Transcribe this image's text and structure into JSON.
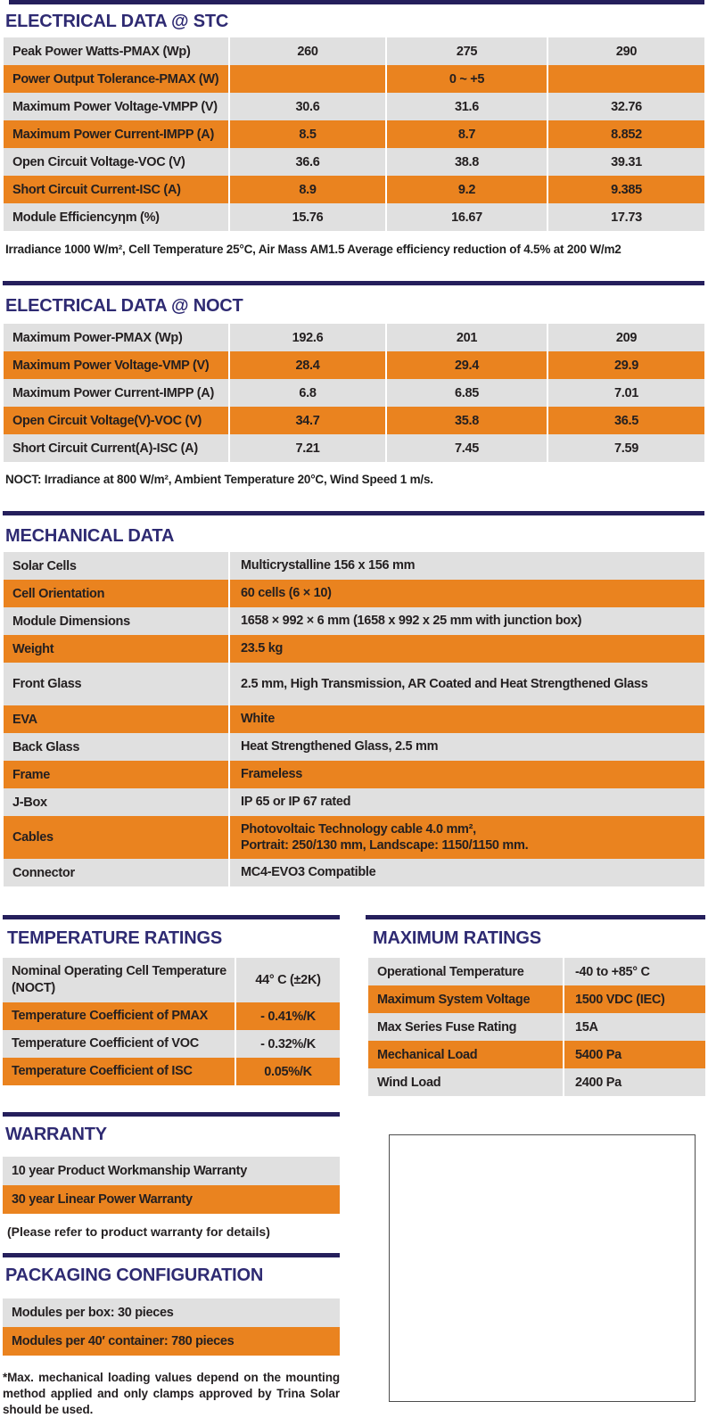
{
  "colors": {
    "navy_bar": "#251F5C",
    "heading_navy": "#2E2A72",
    "row_orange": "#EA831F",
    "row_gray": "#E0E0E0"
  },
  "stc": {
    "title": "ELECTRICAL DATA @ STC",
    "rows": [
      {
        "label": "Peak Power Watts-PMAX (Wp)",
        "values": [
          "260",
          "275",
          "290"
        ]
      },
      {
        "label": "Power Output Tolerance-PMAX (W)",
        "values": [
          "",
          "0 ~ +5",
          ""
        ]
      },
      {
        "label": "Maximum Power Voltage-VMPP (V)",
        "values": [
          "30.6",
          "31.6",
          "32.76"
        ]
      },
      {
        "label": "Maximum Power Current-IMPP (A)",
        "values": [
          "8.5",
          "8.7",
          "8.852"
        ]
      },
      {
        "label": "Open Circuit Voltage-VOC (V)",
        "values": [
          "36.6",
          "38.8",
          "39.31"
        ]
      },
      {
        "label": "Short Circuit Current-ISC (A)",
        "values": [
          "8.9",
          "9.2",
          "9.385"
        ]
      },
      {
        "label": "Module Efficiencyηm (%)",
        "values": [
          "15.76",
          "16.67",
          "17.73"
        ]
      }
    ],
    "footnote": "Irradiance 1000 W/m², Cell Temperature 25°C, Air Mass AM1.5 Average efficiency reduction of 4.5% at 200 W/m2"
  },
  "noct": {
    "title": "ELECTRICAL DATA @ NOCT",
    "rows": [
      {
        "label": "Maximum Power-PMAX (Wp)",
        "values": [
          "192.6",
          "201",
          "209"
        ]
      },
      {
        "label": "Maximum Power Voltage-VMP (V)",
        "values": [
          "28.4",
          "29.4",
          "29.9"
        ]
      },
      {
        "label": "Maximum Power Current-IMPP (A)",
        "values": [
          "6.8",
          "6.85",
          "7.01"
        ]
      },
      {
        "label": "Open Circuit Voltage(V)-VOC (V)",
        "values": [
          "34.7",
          "35.8",
          "36.5"
        ]
      },
      {
        "label": "Short Circuit Current(A)-ISC (A)",
        "values": [
          "7.21",
          "7.45",
          "7.59"
        ]
      }
    ],
    "footnote": "NOCT: Irradiance at 800 W/m², Ambient Temperature 20°C, Wind Speed 1 m/s."
  },
  "mechanical": {
    "title": "MECHANICAL DATA",
    "rows": [
      {
        "label": "Solar Cells",
        "value": "Multicrystalline 156 x 156 mm"
      },
      {
        "label": "Cell Orientation",
        "value": "60 cells (6 × 10)"
      },
      {
        "label": "Module Dimensions",
        "value": "1658 × 992 × 6 mm (1658 x 992 x 25 mm with junction box)"
      },
      {
        "label": "Weight",
        "value": "23.5 kg"
      },
      {
        "label": "Front Glass",
        "value": "2.5 mm, High Transmission, AR Coated and Heat Strengthened Glass"
      },
      {
        "label": "EVA",
        "value": "White"
      },
      {
        "label": "Back Glass",
        "value": "Heat Strengthened Glass, 2.5 mm"
      },
      {
        "label": "Frame",
        "value": "Frameless"
      },
      {
        "label": "J-Box",
        "value": "IP 65 or IP 67 rated"
      },
      {
        "label": "Cables",
        "value": "Photovoltaic Technology cable 4.0 mm²,\nPortrait: 250/130 mm, Landscape: 1150/1150 mm."
      },
      {
        "label": "Connector",
        "value": "MC4-EVO3 Compatible"
      }
    ]
  },
  "temperature": {
    "title": "TEMPERATURE RATINGS",
    "rows": [
      {
        "label": "Nominal Operating Cell Temperature (NOCT)",
        "value": "44° C (±2K)"
      },
      {
        "label": "Temperature Coefficient of PMAX",
        "value": "- 0.41%/K"
      },
      {
        "label": "Temperature Coefficient of VOC",
        "value": "- 0.32%/K"
      },
      {
        "label": "Temperature Coefficient of ISC",
        "value": "0.05%/K"
      }
    ]
  },
  "maximum": {
    "title": "MAXIMUM RATINGS",
    "rows": [
      {
        "label": "Operational Temperature",
        "value": "-40 to +85° C"
      },
      {
        "label": "Maximum System Voltage",
        "value": "1500 VDC (IEC)"
      },
      {
        "label": "Max Series Fuse Rating",
        "value": "15A"
      },
      {
        "label": "Mechanical Load",
        "value": "5400 Pa"
      },
      {
        "label": "Wind Load",
        "value": "2400 Pa"
      }
    ]
  },
  "warranty": {
    "title": "WARRANTY",
    "rows": [
      "10 year Product Workmanship Warranty",
      "30 year Linear Power Warranty"
    ],
    "note": "(Please refer to product warranty for details)"
  },
  "packaging": {
    "title": "PACKAGING CONFIGURATION",
    "rows": [
      "Modules per box: 30 pieces",
      "Modules per 40′  container: 780 pieces"
    ]
  },
  "footer_note": "*Max. mechanical loading values depend on the mounting method applied and only clamps approved by Trina Solar should be used."
}
